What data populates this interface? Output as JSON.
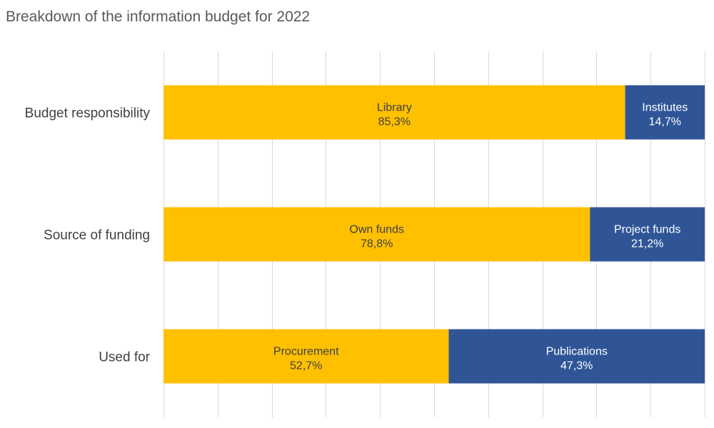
{
  "chart_data": {
    "type": "bar",
    "orientation": "horizontal",
    "stacked": true,
    "title": "Breakdown of the information budget for 2022",
    "xlim": [
      0,
      100
    ],
    "grid": true,
    "legend": "none",
    "categories": [
      "Budget responsibility",
      "Source of funding",
      "Used for"
    ],
    "rows": [
      {
        "category": "Budget responsibility",
        "segments": [
          {
            "label": "Library",
            "value": 85.3,
            "display": "85,3%"
          },
          {
            "label": "Institutes",
            "value": 14.7,
            "display": "14,7%"
          }
        ]
      },
      {
        "category": "Source of funding",
        "segments": [
          {
            "label": "Own funds",
            "value": 78.8,
            "display": "78,8%"
          },
          {
            "label": "Project funds",
            "value": 21.2,
            "display": "21,2%"
          }
        ]
      },
      {
        "category": "Used for",
        "segments": [
          {
            "label": "Procurement",
            "value": 52.7,
            "display": "52,7%"
          },
          {
            "label": "Publications",
            "value": 47.3,
            "display": "47,3%"
          }
        ]
      }
    ]
  },
  "colors": {
    "segment_1": "#FFC000",
    "segment_2": "#2F5597",
    "label_on_segment_1": "#404040",
    "label_on_segment_2": "#FFFFFF",
    "category_label": "#404040",
    "grid": "#D9D9D9"
  }
}
